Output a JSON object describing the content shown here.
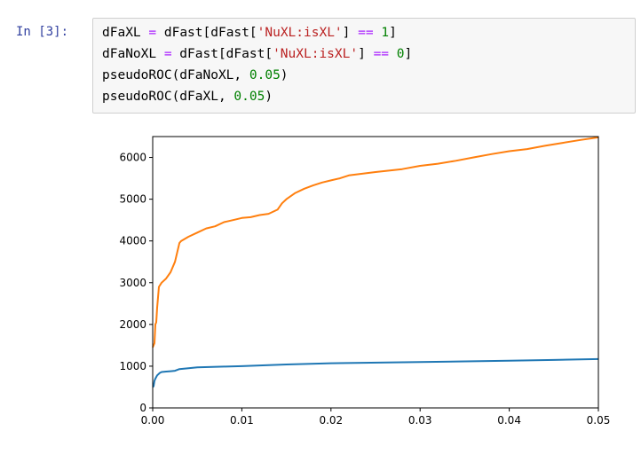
{
  "cell": {
    "prompt": "In [3]:",
    "code": {
      "line1": {
        "a": "dFaXL ",
        "b": "=",
        "c": " dFast[dFast[",
        "d": "'NuXL:isXL'",
        "e": "] ",
        "f": "==",
        "g": " ",
        "h": "1",
        "i": "]"
      },
      "line2": {
        "a": "dFaNoXL ",
        "b": "=",
        "c": " dFast[dFast[",
        "d": "'NuXL:isXL'",
        "e": "] ",
        "f": "==",
        "g": " ",
        "h": "0",
        "i": "]"
      },
      "line3": {
        "a": "pseudoROC(dFaNoXL, ",
        "h": "0.05",
        "i": ")"
      },
      "line4": {
        "a": "pseudoROC(dFaXL, ",
        "h": "0.05",
        "i": ")"
      }
    }
  },
  "chart_data": {
    "type": "line",
    "title": "",
    "xlabel": "",
    "ylabel": "",
    "xlim": [
      0,
      0.05
    ],
    "ylim": [
      0,
      6500
    ],
    "xticks": [
      0,
      0.01,
      0.02,
      0.03,
      0.04,
      0.05
    ],
    "xtick_labels": [
      "0.00",
      "0.01",
      "0.02",
      "0.03",
      "0.04",
      "0.05"
    ],
    "yticks": [
      0,
      1000,
      2000,
      3000,
      4000,
      5000,
      6000
    ],
    "ytick_labels": [
      "0",
      "1000",
      "2000",
      "3000",
      "4000",
      "5000",
      "6000"
    ],
    "grid": false,
    "series": [
      {
        "color": "#1f77b4",
        "x": [
          0,
          0.0001,
          0.0002,
          0.0003,
          0.0005,
          0.0008,
          0.001,
          0.0015,
          0.002,
          0.0025,
          0.003,
          0.004,
          0.005,
          0.008,
          0.01,
          0.015,
          0.02,
          0.03,
          0.04,
          0.045,
          0.05
        ],
        "y": [
          500,
          520,
          650,
          700,
          780,
          840,
          860,
          870,
          880,
          890,
          930,
          950,
          970,
          990,
          1000,
          1040,
          1070,
          1100,
          1130,
          1150,
          1170
        ]
      },
      {
        "color": "#ff7f0e",
        "x": [
          0,
          0.0001,
          0.0002,
          0.0003,
          0.0004,
          0.0005,
          0.0007,
          0.001,
          0.0015,
          0.002,
          0.0025,
          0.003,
          0.0032,
          0.004,
          0.005,
          0.006,
          0.007,
          0.008,
          0.009,
          0.01,
          0.011,
          0.012,
          0.013,
          0.014,
          0.0145,
          0.015,
          0.016,
          0.017,
          0.018,
          0.019,
          0.02,
          0.021,
          0.022,
          0.025,
          0.028,
          0.03,
          0.032,
          0.034,
          0.036,
          0.038,
          0.04,
          0.042,
          0.044,
          0.046,
          0.048,
          0.05
        ],
        "y": [
          1450,
          1500,
          1550,
          2000,
          2050,
          2400,
          2900,
          3000,
          3100,
          3250,
          3500,
          3950,
          4000,
          4100,
          4200,
          4300,
          4350,
          4450,
          4500,
          4550,
          4570,
          4620,
          4650,
          4750,
          4900,
          5000,
          5150,
          5250,
          5330,
          5400,
          5450,
          5500,
          5570,
          5650,
          5720,
          5800,
          5850,
          5920,
          6000,
          6080,
          6150,
          6200,
          6280,
          6350,
          6420,
          6480
        ]
      }
    ]
  }
}
